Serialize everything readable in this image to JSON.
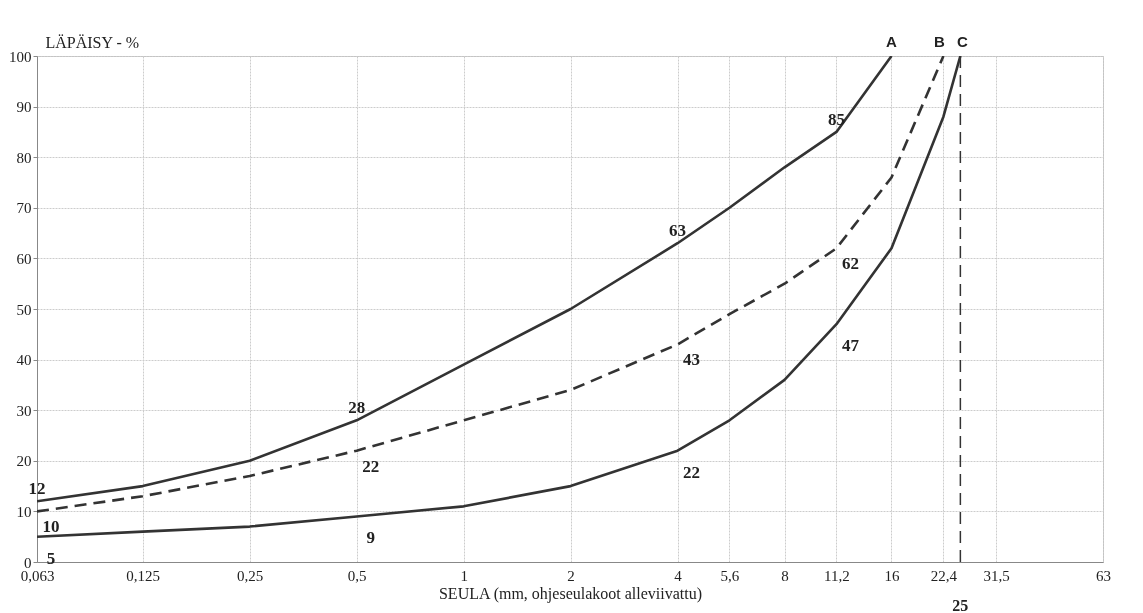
{
  "chart_data": {
    "type": "line",
    "xlabel": "SEULA (mm, ohjeseulakoot alleviivattu)",
    "ylabel": "LÄPÄISY - %",
    "log": "x",
    "x": [
      0.063,
      0.125,
      0.25,
      0.5,
      1,
      2,
      4,
      5.6,
      8,
      11.2,
      16,
      22.4,
      25
    ],
    "series": [
      {
        "name": "A",
        "color": "#333333",
        "line_style": "solid",
        "values": [
          12,
          15,
          20,
          28,
          39,
          50,
          63,
          70,
          78,
          85,
          100,
          null,
          null
        ],
        "value_labels": [
          "12",
          null,
          null,
          "28",
          null,
          null,
          "63",
          null,
          null,
          "85",
          null,
          null,
          null
        ]
      },
      {
        "name": "B",
        "color": "#333333",
        "line_style": "dashed",
        "values": [
          10,
          13,
          17,
          22,
          28,
          34,
          43,
          49,
          55,
          62,
          76,
          100,
          null
        ],
        "value_labels": [
          "10",
          null,
          null,
          "22",
          null,
          null,
          "43",
          null,
          null,
          "62",
          null,
          null,
          null
        ]
      },
      {
        "name": "C",
        "color": "#333333",
        "line_style": "solid",
        "values": [
          5,
          6,
          7,
          9,
          11,
          15,
          22,
          28,
          36,
          47,
          62,
          88,
          100
        ],
        "value_labels": [
          "5",
          null,
          null,
          "9",
          null,
          null,
          "22",
          null,
          null,
          "47",
          null,
          null,
          null
        ]
      }
    ],
    "xlim": [
      0.063,
      63
    ],
    "ylim": [
      0,
      100
    ],
    "xticks": [
      {
        "value": 0.063,
        "label": "0,063"
      },
      {
        "value": 0.125,
        "label": "0,125"
      },
      {
        "value": 0.25,
        "label": "0,25"
      },
      {
        "value": 0.5,
        "label": "0,5"
      },
      1,
      2,
      4,
      {
        "value": 5.6,
        "label": "5,6"
      },
      8,
      {
        "value": 11.2,
        "label": "11,2"
      },
      16,
      {
        "value": 22.4,
        "label": "22,4"
      },
      {
        "value": 31.5,
        "label": "31,5"
      },
      63
    ],
    "yticks": [
      0,
      10,
      20,
      30,
      40,
      50,
      60,
      70,
      80,
      90,
      100
    ],
    "grid": true,
    "ref_lines": [
      {
        "axis": "x",
        "value": 25,
        "label": "25",
        "line_style": "dashed",
        "color": "#333333"
      }
    ]
  }
}
